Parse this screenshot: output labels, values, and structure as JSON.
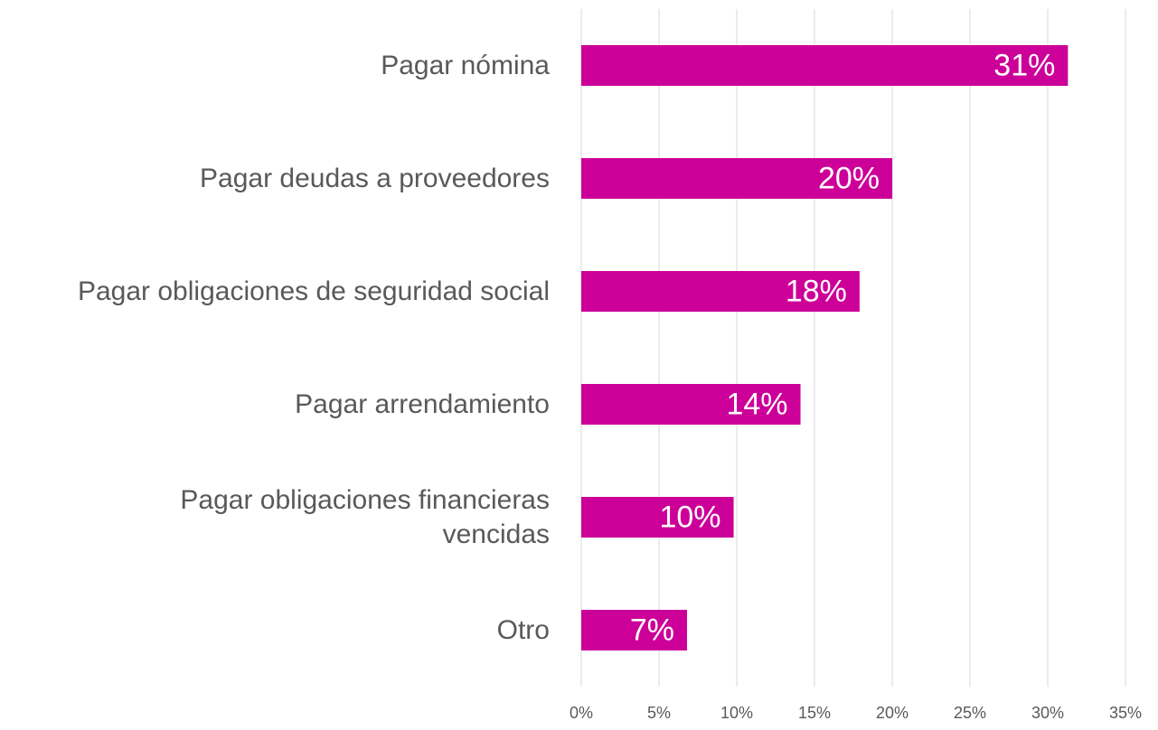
{
  "chart_data": {
    "type": "bar",
    "orientation": "horizontal",
    "categories": [
      "Pagar nómina",
      "Pagar deudas a proveedores",
      "Pagar obligaciones de seguridad social",
      "Pagar arrendamiento",
      "Pagar obligaciones financieras vencidas",
      "Otro"
    ],
    "values": [
      31.3,
      20.0,
      17.9,
      14.1,
      9.8,
      6.8
    ],
    "value_labels": [
      "31%",
      "20%",
      "18%",
      "14%",
      "10%",
      "7%"
    ],
    "color": "#cc0099",
    "xlim": [
      0,
      35
    ],
    "xticks": [
      {
        "value": 0,
        "label": "0%"
      },
      {
        "value": 5,
        "label": "5%"
      },
      {
        "value": 10,
        "label": "10%"
      },
      {
        "value": 15,
        "label": "15%"
      },
      {
        "value": 20,
        "label": "20%"
      },
      {
        "value": 25,
        "label": "25%"
      },
      {
        "value": 30,
        "label": "30%"
      },
      {
        "value": 35,
        "label": "35%"
      }
    ],
    "grid": true
  }
}
